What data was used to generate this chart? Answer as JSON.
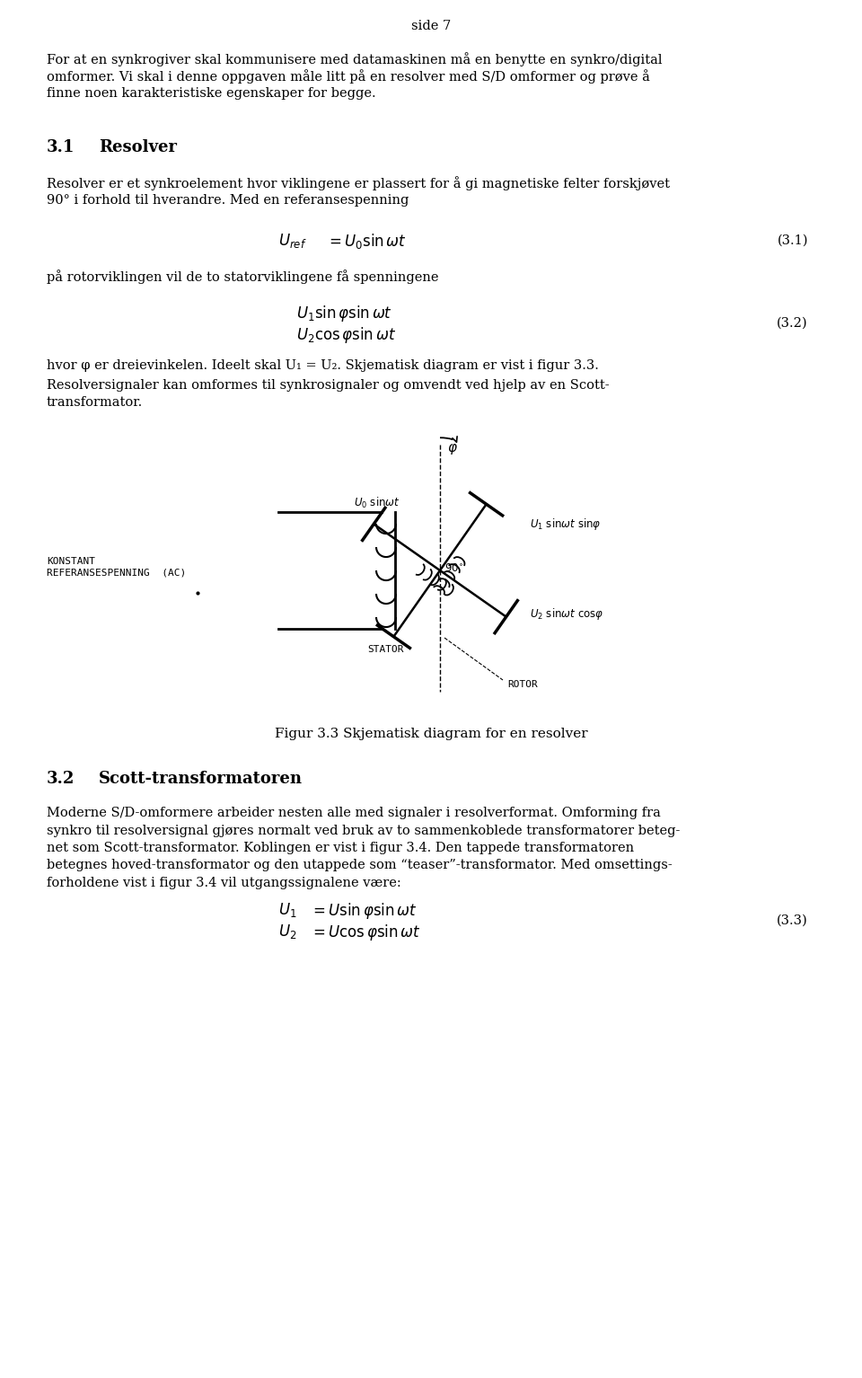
{
  "page_header": "side 7",
  "para1_lines": [
    "For at en synkrogiver skal kommunisere med datamaskinen må en benytte en synkro/digital",
    "omformer. Vi skal i denne oppgaven måle litt på en resolver med S/D omformer og prøve å",
    "finne noen karakteristiske egenskaper for begge."
  ],
  "section1_num": "3.1",
  "section1_title": "Resolver",
  "sec1_body_lines": [
    "Resolver er et synkroelement hvor viklingene er plassert for å gi magnetiske felter forskjøvet",
    "90° i forhold til hverandre. Med en referansespenning"
  ],
  "eq1_label": "(3.1)",
  "para2": "på rotorviklingen vil de to statorviklingene få spenningene",
  "eq2_label": "(3.2)",
  "para3": "hvor φ er dreievinkelen. Ideelt skal U₁ = U₂. Skjematisk diagram er vist i figur 3.3.",
  "para4_lines": [
    "Resolversignaler kan omformes til synkrosignaler og omvendt ved hjelp av en Scott-",
    "transformator."
  ],
  "fig_caption": "Figur 3.3 Skjematisk diagram for en resolver",
  "section2_num": "3.2",
  "section2_title": "Scott-transformatoren",
  "sec2_body_lines": [
    "Moderne S/D-omformere arbeider nesten alle med signaler i resolverformat. Omforming fra",
    "synkro til resolversignal gjøres normalt ved bruk av to sammenkoblede transformatorer beteg-",
    "net som Scott-transformator. Koblingen er vist i figur 3.4. Den tappede transformatoren",
    "betegnes hoved-transformator og den utappede som “teaser”-transformator. Med omsettings-",
    "forholdene vist i figur 3.4 vil utgangssignalene være:"
  ],
  "eq3_label": "(3.3)",
  "bg_color": "#ffffff",
  "text_color": "#000000"
}
